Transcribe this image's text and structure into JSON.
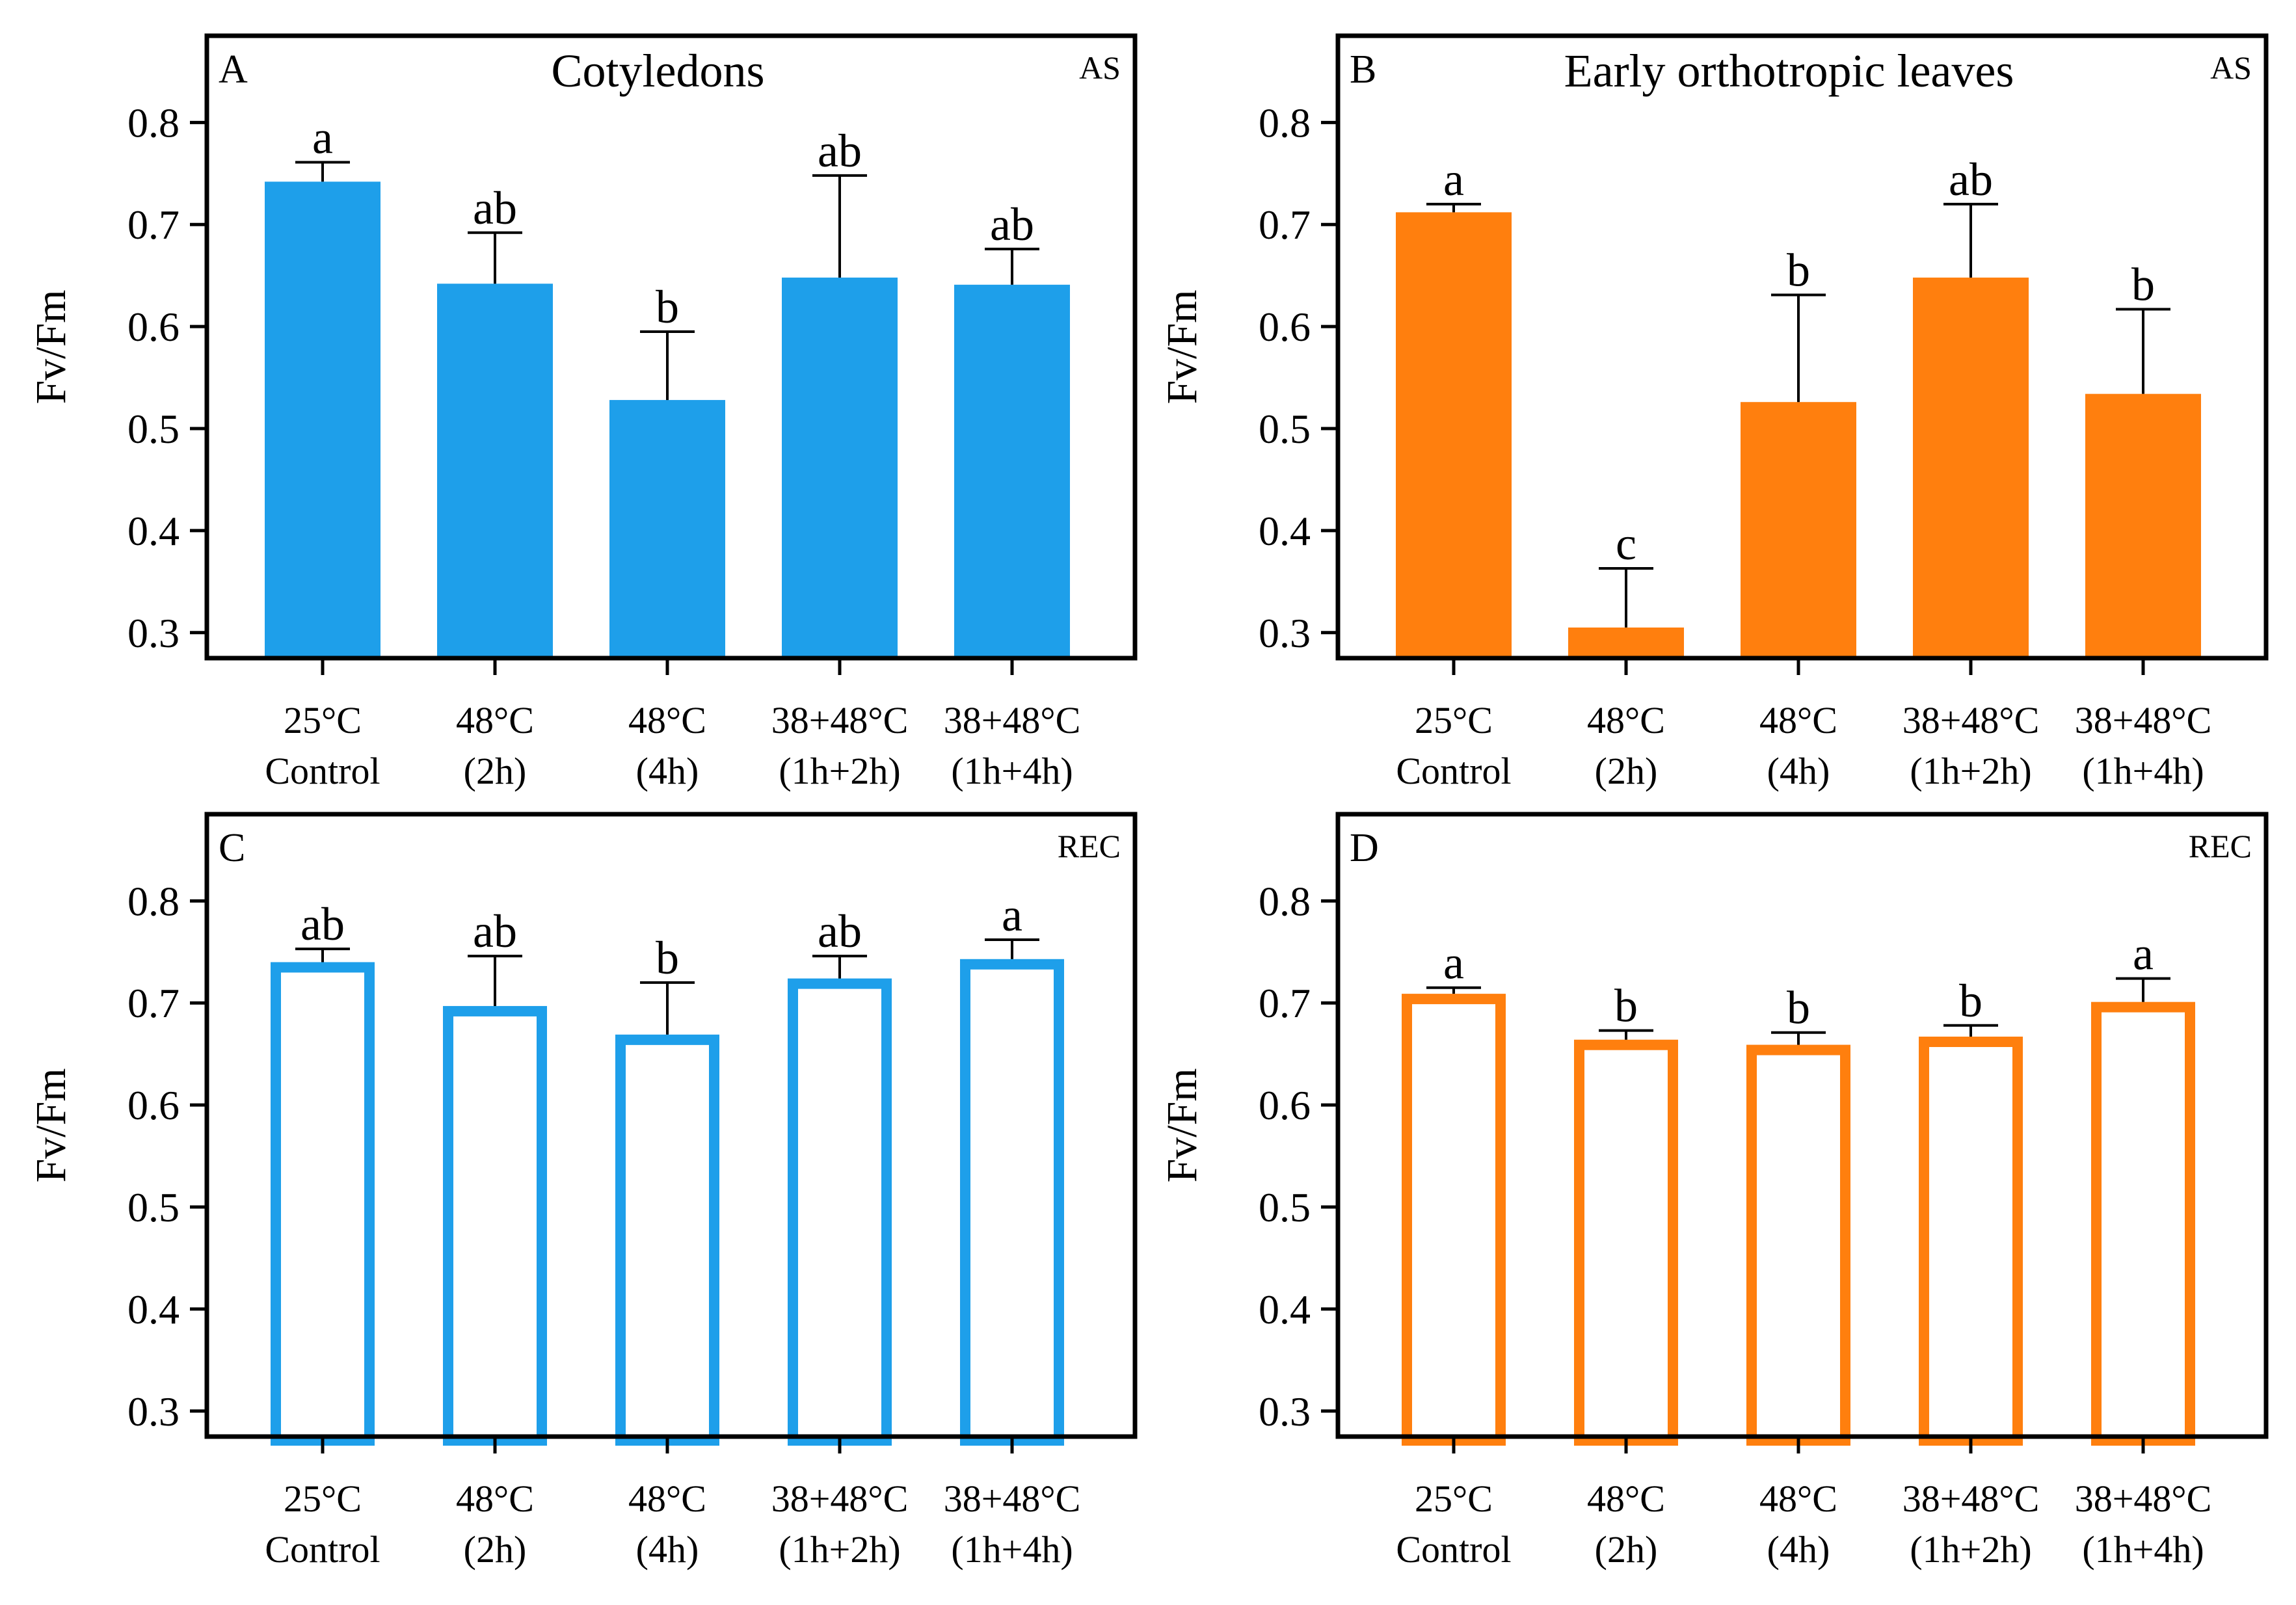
{
  "y_axis_title": "Fv/Fm",
  "chart_data": [
    {
      "panel": "A",
      "type": "bar",
      "fill": "solid",
      "title": "Cotyledons",
      "tag": "AS",
      "color": "#1E9FEA",
      "ylabel": "Fv/Fm",
      "ylim": [
        0.275,
        0.885
      ],
      "yticks": [
        "0.3",
        "0.4",
        "0.5",
        "0.6",
        "0.7",
        "0.8"
      ],
      "categories": [
        [
          "25°C",
          "Control"
        ],
        [
          "48°C",
          "(2h)"
        ],
        [
          "48°C",
          "(4h)"
        ],
        [
          "38+48°C",
          "(1h+2h)"
        ],
        [
          "38+48°C",
          "(1h+4h)"
        ]
      ],
      "values": [
        0.742,
        0.642,
        0.528,
        0.648,
        0.641
      ],
      "errors": [
        0.019,
        0.05,
        0.067,
        0.1,
        0.035
      ],
      "labels": [
        "a",
        "ab",
        "b",
        "ab",
        "ab"
      ]
    },
    {
      "panel": "B",
      "type": "bar",
      "fill": "solid",
      "title": "Early orthotropic leaves",
      "tag": "AS",
      "color": "#FF7F0E",
      "ylabel": "Fv/Fm",
      "ylim": [
        0.275,
        0.885
      ],
      "yticks": [
        "0.3",
        "0.4",
        "0.5",
        "0.6",
        "0.7",
        "0.8"
      ],
      "categories": [
        [
          "25°C",
          "Control"
        ],
        [
          "48°C",
          "(2h)"
        ],
        [
          "48°C",
          "(4h)"
        ],
        [
          "38+48°C",
          "(1h+2h)"
        ],
        [
          "38+48°C",
          "(1h+4h)"
        ]
      ],
      "values": [
        0.712,
        0.305,
        0.526,
        0.648,
        0.534
      ],
      "errors": [
        0.008,
        0.058,
        0.105,
        0.072,
        0.083
      ],
      "labels": [
        "a",
        "c",
        "b",
        "ab",
        "b"
      ]
    },
    {
      "panel": "C",
      "type": "bar",
      "fill": "outline",
      "title": "",
      "tag": "REC",
      "color": "#1E9FEA",
      "ylabel": "Fv/Fm",
      "ylim": [
        0.275,
        0.885
      ],
      "yticks": [
        "0.3",
        "0.4",
        "0.5",
        "0.6",
        "0.7",
        "0.8"
      ],
      "categories": [
        [
          "25°C",
          "Control"
        ],
        [
          "48°C",
          "(2h)"
        ],
        [
          "48°C",
          "(4h)"
        ],
        [
          "38+48°C",
          "(1h+2h)"
        ],
        [
          "38+48°C",
          "(1h+4h)"
        ]
      ],
      "values": [
        0.74,
        0.697,
        0.669,
        0.724,
        0.743
      ],
      "errors": [
        0.013,
        0.049,
        0.051,
        0.022,
        0.019
      ],
      "labels": [
        "ab",
        "ab",
        "b",
        "ab",
        "a"
      ]
    },
    {
      "panel": "D",
      "type": "bar",
      "fill": "outline",
      "title": "",
      "tag": "REC",
      "color": "#FF7F0E",
      "ylabel": "Fv/Fm",
      "ylim": [
        0.275,
        0.885
      ],
      "yticks": [
        "0.3",
        "0.4",
        "0.5",
        "0.6",
        "0.7",
        "0.8"
      ],
      "categories": [
        [
          "25°C",
          "Control"
        ],
        [
          "48°C",
          "(2h)"
        ],
        [
          "48°C",
          "(4h)"
        ],
        [
          "38+48°C",
          "(1h+2h)"
        ],
        [
          "38+48°C",
          "(1h+4h)"
        ]
      ],
      "values": [
        0.709,
        0.664,
        0.659,
        0.667,
        0.701
      ],
      "errors": [
        0.006,
        0.009,
        0.012,
        0.011,
        0.023
      ],
      "labels": [
        "a",
        "b",
        "b",
        "b",
        "a"
      ]
    }
  ]
}
